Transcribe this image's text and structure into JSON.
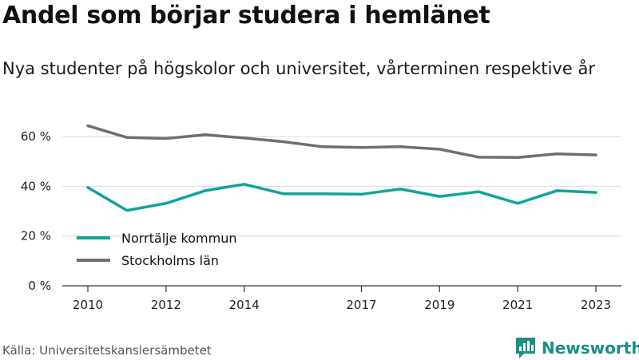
{
  "title": "Andel som börjar studera i hemlänet",
  "subtitle": "Nya studenter på högskolor och universitet, vårterminen respektive år",
  "source": "Källa: Universitetskanslersämbetet",
  "brand": {
    "name": "Newsworthy",
    "color": "#1a8f87",
    "icon": "bar-chart-speech-bubble-icon"
  },
  "chart_data": {
    "type": "line",
    "title": "Andel som börjar studera i hemlänet",
    "subtitle": "Nya studenter på högskolor och universitet, vårterminen respektive år",
    "x": [
      2010,
      2011,
      2012,
      2013,
      2014,
      2015,
      2016,
      2017,
      2018,
      2019,
      2020,
      2021,
      2022,
      2023
    ],
    "x_tick_values": [
      2010,
      2012,
      2014,
      2017,
      2019,
      2021,
      2023
    ],
    "x_tick_labels": [
      "2010",
      "2012",
      "2014",
      "2017",
      "2019",
      "2021",
      "2023"
    ],
    "ylim": [
      0,
      70
    ],
    "y_tick_values": [
      0,
      20,
      40,
      60
    ],
    "y_tick_labels": [
      "0 %",
      "20 %",
      "40 %",
      "60 %"
    ],
    "grid": true,
    "legend_position": "bottom-left",
    "series": [
      {
        "name": "Norrtälje kommun",
        "color": "#0fa39a",
        "values": [
          39.5,
          30.3,
          33.1,
          38.2,
          40.8,
          37.0,
          37.0,
          36.8,
          38.9,
          35.9,
          37.8,
          33.1,
          38.2,
          37.5
        ]
      },
      {
        "name": "Stockholms län",
        "color": "#6f6e74",
        "values": [
          64.3,
          59.6,
          59.2,
          60.7,
          59.4,
          57.9,
          55.9,
          55.6,
          55.9,
          54.9,
          51.7,
          51.6,
          53.0,
          52.6
        ]
      }
    ]
  }
}
